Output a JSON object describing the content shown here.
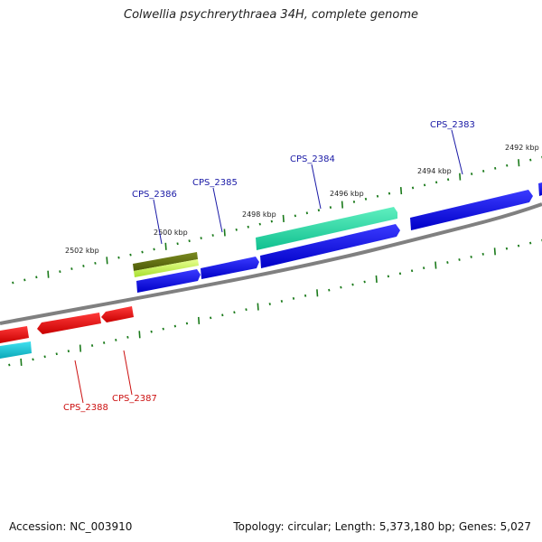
{
  "title": "Colwellia psychrerythraea 34H, complete genome",
  "accession": "Accession: NC_003910",
  "summary": "Topology: circular; Length: 5,373,180 bp; Genes: 5,027",
  "colors": {
    "backbone": "#808080",
    "ticks": "#1a7a1a",
    "forward_label": "#1a1aa6",
    "reverse_label": "#cc1111"
  },
  "kbp_labels": [
    "2502 kbp",
    "2500 kbp",
    "2498 kbp",
    "2496 kbp",
    "2494 kbp",
    "2492 kbp"
  ],
  "gene_labels": [
    {
      "text": "CPS_2386",
      "strand": "forward"
    },
    {
      "text": "CPS_2385",
      "strand": "forward"
    },
    {
      "text": "CPS_2384",
      "strand": "forward"
    },
    {
      "text": "CPS_2383",
      "strand": "forward"
    },
    {
      "text": "CPS_2387",
      "strand": "reverse"
    },
    {
      "text": "CPS_2388",
      "strand": "reverse"
    }
  ],
  "feature_colors": {
    "forward_cds": "#0a0ae0",
    "reverse_cds": "#e00a0a",
    "olive_feature": "#6b7a10",
    "lime_feature": "#c8f050",
    "teal_feature": "#20d0a0",
    "cyan_feature": "#10b8c8"
  }
}
